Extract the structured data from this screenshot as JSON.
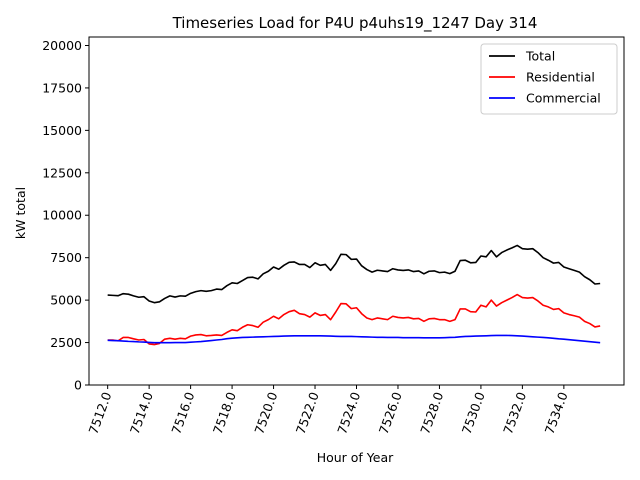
{
  "chart_data": {
    "type": "line",
    "title": "Timeseries Load for P4U p4uhs19_1247  Day 314",
    "xlabel": "Hour of Year",
    "ylabel": "kW total",
    "xlim": [
      7511.1,
      7536.9
    ],
    "ylim": [
      0,
      20500
    ],
    "xticks": [
      7512,
      7514,
      7516,
      7518,
      7520,
      7522,
      7524,
      7526,
      7528,
      7530,
      7532,
      7534
    ],
    "xtick_labels": [
      "7512.0",
      "7514.0",
      "7516.0",
      "7518.0",
      "7520.0",
      "7522.0",
      "7524.0",
      "7526.0",
      "7528.0",
      "7530.0",
      "7532.0",
      "7534.0"
    ],
    "yticks": [
      0,
      2500,
      5000,
      7500,
      10000,
      12500,
      15000,
      17500,
      20000
    ],
    "ytick_labels": [
      "0",
      "2500",
      "5000",
      "7500",
      "10000",
      "12500",
      "15000",
      "17500",
      "20000"
    ],
    "legend_position": "top-right",
    "x_start": 7512,
    "x_step": 0.25,
    "series": [
      {
        "name": "Total",
        "color": "#000000",
        "values": [
          5300,
          5280,
          5260,
          5380,
          5350,
          5250,
          5170,
          5200,
          4950,
          4850,
          4900,
          5100,
          5250,
          5180,
          5250,
          5230,
          5400,
          5500,
          5560,
          5520,
          5560,
          5650,
          5620,
          5850,
          6020,
          5980,
          6150,
          6330,
          6350,
          6250,
          6550,
          6700,
          6950,
          6820,
          7050,
          7230,
          7250,
          7100,
          7100,
          6920,
          7200,
          7050,
          7100,
          6750,
          7150,
          7700,
          7680,
          7400,
          7420,
          7020,
          6800,
          6650,
          6760,
          6720,
          6680,
          6850,
          6780,
          6750,
          6780,
          6680,
          6720,
          6550,
          6700,
          6720,
          6620,
          6650,
          6560,
          6700,
          7330,
          7350,
          7200,
          7220,
          7600,
          7550,
          7920,
          7550,
          7800,
          7950,
          8080,
          8220,
          8030,
          8000,
          8030,
          7800,
          7500,
          7350,
          7180,
          7220,
          6950,
          6850,
          6750,
          6650,
          6380,
          6200,
          5950,
          5980
        ]
      },
      {
        "name": "Residential",
        "color": "#ff0000",
        "values": [
          2650,
          2650,
          2600,
          2800,
          2800,
          2720,
          2650,
          2680,
          2420,
          2380,
          2450,
          2700,
          2750,
          2700,
          2750,
          2720,
          2880,
          2950,
          2970,
          2900,
          2920,
          2950,
          2920,
          3100,
          3250,
          3200,
          3400,
          3550,
          3500,
          3400,
          3700,
          3850,
          4050,
          3900,
          4150,
          4320,
          4400,
          4200,
          4150,
          4000,
          4250,
          4100,
          4150,
          3850,
          4300,
          4800,
          4780,
          4500,
          4550,
          4200,
          3950,
          3850,
          3950,
          3900,
          3850,
          4050,
          3980,
          3950,
          3980,
          3900,
          3920,
          3750,
          3900,
          3920,
          3850,
          3850,
          3750,
          3850,
          4480,
          4480,
          4320,
          4300,
          4700,
          4600,
          5000,
          4650,
          4850,
          5000,
          5150,
          5330,
          5150,
          5120,
          5150,
          4950,
          4700,
          4600,
          4450,
          4500,
          4250,
          4150,
          4080,
          4000,
          3750,
          3620,
          3420,
          3480
        ]
      },
      {
        "name": "Commercial",
        "color": "#0000ff",
        "values": [
          2630,
          2620,
          2610,
          2590,
          2570,
          2560,
          2540,
          2530,
          2510,
          2490,
          2490,
          2490,
          2490,
          2500,
          2500,
          2500,
          2520,
          2540,
          2560,
          2590,
          2620,
          2650,
          2680,
          2730,
          2760,
          2780,
          2800,
          2810,
          2820,
          2830,
          2840,
          2850,
          2860,
          2870,
          2880,
          2890,
          2900,
          2900,
          2900,
          2900,
          2900,
          2900,
          2890,
          2880,
          2870,
          2860,
          2860,
          2860,
          2850,
          2840,
          2830,
          2820,
          2810,
          2810,
          2800,
          2800,
          2800,
          2790,
          2790,
          2790,
          2790,
          2780,
          2780,
          2780,
          2780,
          2790,
          2800,
          2810,
          2840,
          2860,
          2870,
          2880,
          2890,
          2900,
          2910,
          2920,
          2920,
          2920,
          2910,
          2900,
          2880,
          2860,
          2840,
          2820,
          2800,
          2780,
          2750,
          2720,
          2700,
          2670,
          2640,
          2610,
          2580,
          2550,
          2520,
          2490
        ]
      }
    ]
  }
}
